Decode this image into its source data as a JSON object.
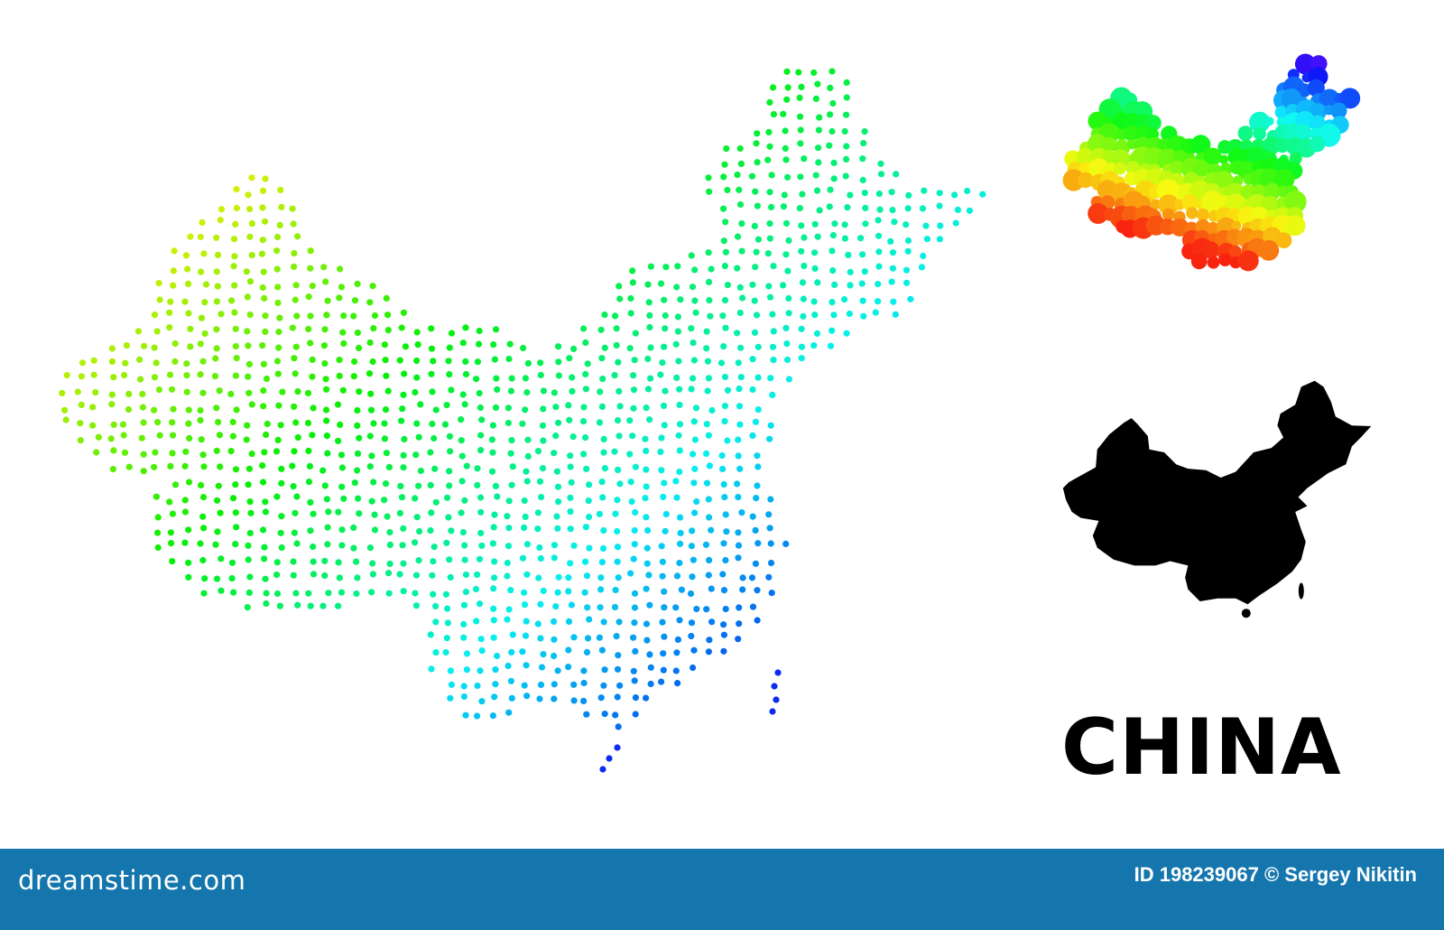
{
  "title": "CHINA",
  "footer": {
    "logo": "dreamstime.com",
    "credit": "ID 198239067 © Sergey Nikitin",
    "background_color": "#1576ad"
  },
  "maps": [
    {
      "kind": "dotted-gradient-map",
      "palette": "yellow-green-cyan-blue"
    },
    {
      "kind": "bubble-spectrum-map",
      "palette": "red-orange-yellow-green-cyan-blue-violet"
    },
    {
      "kind": "solid-silhouette-map",
      "color": "#000000"
    }
  ]
}
